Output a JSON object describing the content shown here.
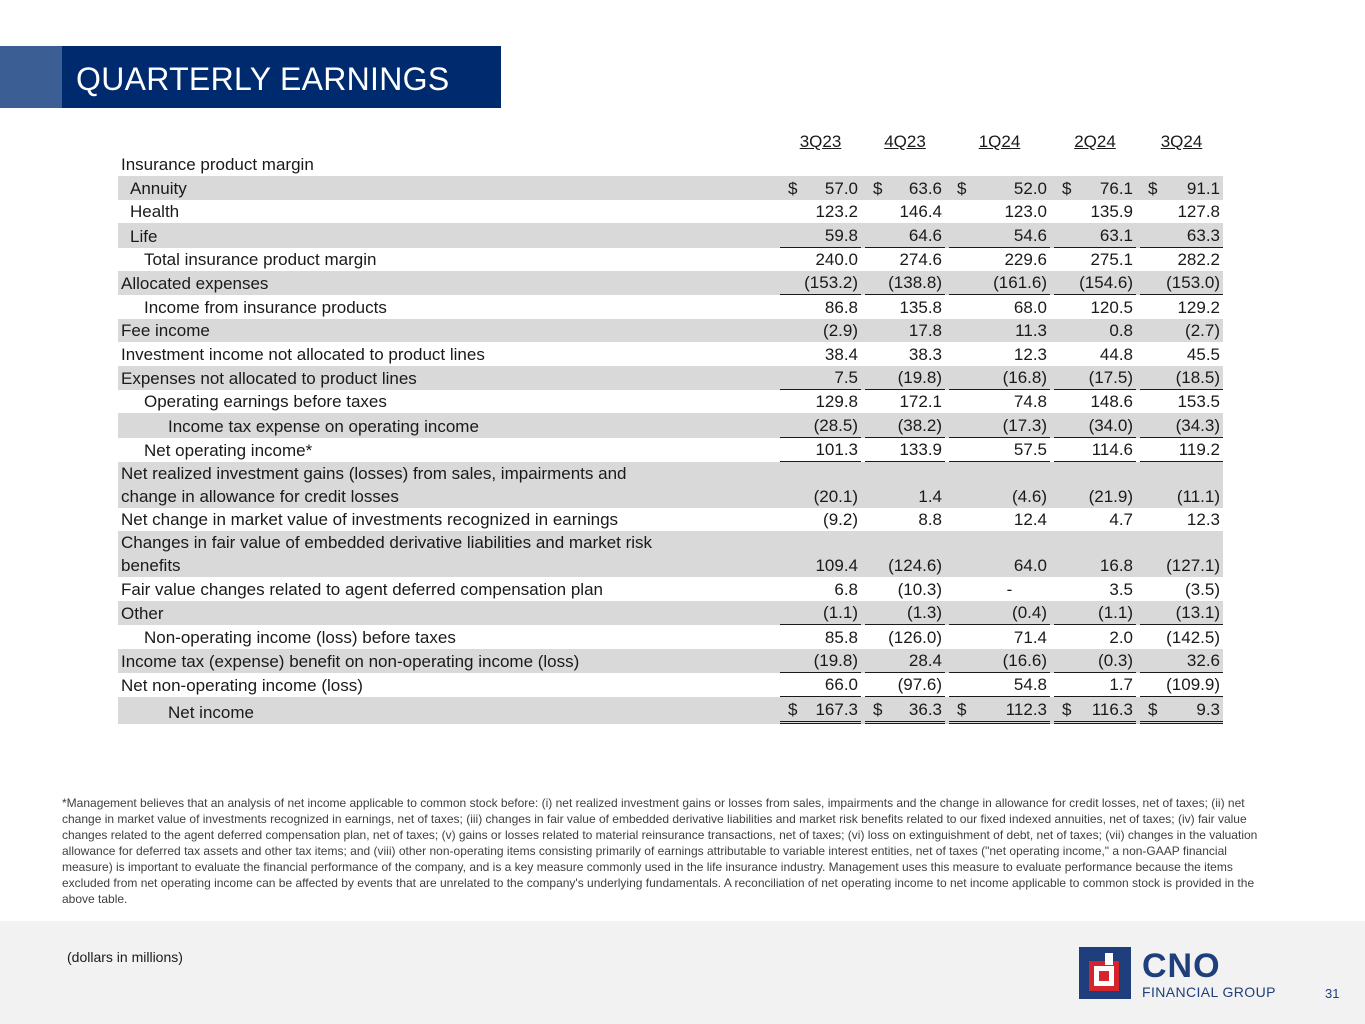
{
  "title": "QUARTERLY EARNINGS",
  "columns": [
    "3Q23",
    "4Q23",
    "1Q24",
    "2Q24",
    "3Q24"
  ],
  "rows": [
    {
      "label": "Insurance product margin",
      "values": [
        "",
        "",
        "",
        "",
        ""
      ]
    },
    {
      "label": "Annuity",
      "values": [
        "57.0",
        "63.6",
        "52.0",
        "76.1",
        "91.1"
      ],
      "currency": "$"
    },
    {
      "label": "Health",
      "values": [
        "123.2",
        "146.4",
        "123.0",
        "135.9",
        "127.8"
      ]
    },
    {
      "label": "Life",
      "values": [
        "59.8",
        "64.6",
        "54.6",
        "63.1",
        "63.3"
      ]
    },
    {
      "label": "Total insurance product margin",
      "values": [
        "240.0",
        "274.6",
        "229.6",
        "275.1",
        "282.2"
      ]
    },
    {
      "label": "Allocated expenses",
      "values": [
        "(153.2)",
        "(138.8)",
        "(161.6)",
        "(154.6)",
        "(153.0)"
      ]
    },
    {
      "label": "Income from insurance products",
      "values": [
        "86.8",
        "135.8",
        "68.0",
        "120.5",
        "129.2"
      ]
    },
    {
      "label": "Fee income",
      "values": [
        "(2.9)",
        "17.8",
        "11.3",
        "0.8",
        "(2.7)"
      ]
    },
    {
      "label": "Investment income not allocated to product lines",
      "values": [
        "38.4",
        "38.3",
        "12.3",
        "44.8",
        "45.5"
      ]
    },
    {
      "label": "Expenses not allocated to product lines",
      "values": [
        "7.5",
        "(19.8)",
        "(16.8)",
        "(17.5)",
        "(18.5)"
      ]
    },
    {
      "label": "Operating earnings before taxes",
      "values": [
        "129.8",
        "172.1",
        "74.8",
        "148.6",
        "153.5"
      ]
    },
    {
      "label": "Income tax expense on operating income",
      "values": [
        "(28.5)",
        "(38.2)",
        "(17.3)",
        "(34.0)",
        "(34.3)"
      ]
    },
    {
      "label": "Net operating income*",
      "values": [
        "101.3",
        "133.9",
        "57.5",
        "114.6",
        "119.2"
      ]
    },
    {
      "label_line1": "Net realized investment gains (losses) from sales, impairments and",
      "label_line2": "change in allowance for credit losses",
      "values": [
        "(20.1)",
        "1.4",
        "(4.6)",
        "(21.9)",
        "(11.1)"
      ]
    },
    {
      "label": "Net change in market value of investments recognized in earnings",
      "values": [
        "(9.2)",
        "8.8",
        "12.4",
        "4.7",
        "12.3"
      ]
    },
    {
      "label_line1": "Changes in fair value of embedded derivative liabilities and market risk",
      "label_line2": "benefits",
      "values": [
        "109.4",
        "(124.6)",
        "64.0",
        "16.8",
        "(127.1)"
      ]
    },
    {
      "label": "Fair value changes related to agent deferred compensation plan",
      "values": [
        "6.8",
        "(10.3)",
        "-",
        "3.5",
        "(3.5)"
      ]
    },
    {
      "label": "Other",
      "values": [
        "(1.1)",
        "(1.3)",
        "(0.4)",
        "(1.1)",
        "(13.1)"
      ]
    },
    {
      "label": "Non-operating income (loss) before taxes",
      "values": [
        "85.8",
        "(126.0)",
        "71.4",
        "2.0",
        "(142.5)"
      ]
    },
    {
      "label": "Income tax (expense) benefit on non-operating income (loss)",
      "values": [
        "(19.8)",
        "28.4",
        "(16.6)",
        "(0.3)",
        "32.6"
      ]
    },
    {
      "label": "Net non-operating income (loss)",
      "values": [
        "66.0",
        "(97.6)",
        "54.8",
        "1.7",
        "(109.9)"
      ]
    },
    {
      "label": "Net income",
      "values": [
        "167.3",
        "36.3",
        "112.3",
        "116.3",
        "9.3"
      ],
      "currency": "$"
    }
  ],
  "footnote": "*Management believes that an analysis of net income applicable to common stock before: (i) net realized investment gains or losses from sales, impairments and the change in allowance for credit losses, net of taxes; (ii) net change in market value of investments recognized in earnings, net of taxes; (iii) changes in fair value of embedded derivative liabilities and market risk benefits related to our fixed indexed annuities, net of taxes; (iv) fair value changes related to the agent deferred compensation plan, net of taxes; (v) gains or losses related to material reinsurance transactions, net of taxes; (vi) loss on extinguishment of debt, net of taxes; (vii) changes in the valuation allowance for deferred tax assets and other tax items; and (viii) other non-operating items consisting primarily of earnings attributable to variable interest entities, net of taxes (\"net operating income,\" a non-GAAP financial measure) is important to evaluate the financial performance of the company, and is a key measure commonly used in the life insurance industry. Management uses this measure to evaluate performance because the items excluded from net operating income can be affected by events that are unrelated to the company's underlying fundamentals. A reconciliation of net operating income to net income applicable to common stock is provided in the above table.",
  "units_note": "(dollars in millions)",
  "logo": {
    "name": "CNO",
    "subtitle": "FINANCIAL GROUP"
  },
  "page_number": "31",
  "colors": {
    "title_bg": "#002a6e",
    "title_accent": "#3b5f95",
    "row_shade": "#d9d9d9",
    "brand_blue": "#1f3e7c",
    "brand_red": "#d5242c"
  }
}
